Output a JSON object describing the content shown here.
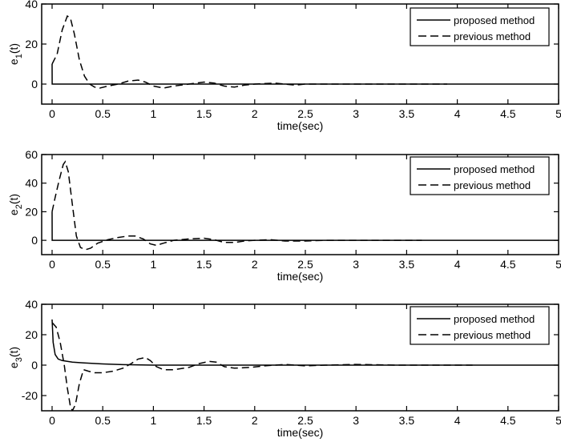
{
  "figure": {
    "legend": {
      "proposed": "proposed method",
      "previous": "previous method"
    },
    "xlabel": "time(sec)",
    "xticks": [
      "0",
      "0.5",
      "1",
      "1.5",
      "2",
      "2.5",
      "3",
      "3.5",
      "4",
      "4.5",
      "5"
    ]
  },
  "chart_data": [
    {
      "type": "line",
      "title": "",
      "xlabel": "time(sec)",
      "ylabel": "e1(t)",
      "ylabel_base": "e",
      "ylabel_sub": "1",
      "ylabel_suffix": "(t)",
      "xlim": [
        0,
        5
      ],
      "ylim": [
        -10,
        40
      ],
      "yticks": [
        "0",
        "20",
        "40"
      ],
      "ytick_values": [
        0,
        20,
        40
      ],
      "grid": false,
      "legend_position": "upper right",
      "series": [
        {
          "name": "proposed method",
          "style": "solid",
          "x": [
            0,
            0,
            0.001,
            5
          ],
          "y": [
            10,
            10,
            0,
            0
          ]
        },
        {
          "name": "previous method",
          "style": "dashed",
          "x": [
            0,
            0.05,
            0.1,
            0.15,
            0.18,
            0.22,
            0.27,
            0.32,
            0.37,
            0.42,
            0.47,
            0.55,
            0.65,
            0.75,
            0.85,
            0.92,
            1.0,
            1.1,
            1.2,
            1.35,
            1.5,
            1.6,
            1.7,
            1.8,
            1.9,
            2.0,
            2.2,
            2.4,
            2.5,
            3.0,
            3.2,
            3.8,
            3.9
          ],
          "y": [
            10,
            15,
            27,
            34,
            33,
            25,
            12,
            4,
            0,
            -1.5,
            -2,
            -1,
            0,
            1.5,
            2,
            1,
            -1,
            -2,
            -1,
            0,
            1,
            0.5,
            -1,
            -1.5,
            -0.5,
            0,
            0.5,
            -0.5,
            0,
            0,
            0,
            0,
            0
          ]
        }
      ]
    },
    {
      "type": "line",
      "title": "",
      "xlabel": "time(sec)",
      "ylabel": "e2(t)",
      "ylabel_base": "e",
      "ylabel_sub": "2",
      "ylabel_suffix": "(t)",
      "xlim": [
        0,
        5
      ],
      "ylim": [
        -10,
        60
      ],
      "yticks": [
        "0",
        "20",
        "40",
        "60"
      ],
      "ytick_values": [
        0,
        20,
        40,
        60
      ],
      "grid": false,
      "legend_position": "upper right",
      "series": [
        {
          "name": "proposed method",
          "style": "solid",
          "x": [
            0,
            0,
            0.001,
            5
          ],
          "y": [
            20,
            20,
            0,
            0
          ]
        },
        {
          "name": "previous method",
          "style": "dashed",
          "x": [
            0,
            0.03,
            0.07,
            0.11,
            0.13,
            0.16,
            0.2,
            0.24,
            0.28,
            0.33,
            0.38,
            0.45,
            0.55,
            0.65,
            0.75,
            0.82,
            0.9,
            0.97,
            1.03,
            1.1,
            1.2,
            1.35,
            1.5,
            1.6,
            1.7,
            1.8,
            1.9,
            2.0,
            2.15,
            2.3,
            2.5,
            2.7,
            3.0,
            3.5,
            3.65
          ],
          "y": [
            20,
            30,
            42,
            53,
            55,
            48,
            25,
            3,
            -5,
            -6.5,
            -5.5,
            -2,
            0.5,
            2,
            3,
            3,
            1,
            -2.5,
            -3.5,
            -2,
            0,
            1,
            1.5,
            0.5,
            -1.5,
            -1.5,
            -0.5,
            0,
            0.5,
            -0.5,
            -0.5,
            0,
            0,
            0,
            0
          ]
        }
      ]
    },
    {
      "type": "line",
      "title": "",
      "xlabel": "time(sec)",
      "ylabel": "e3(t)",
      "ylabel_base": "e",
      "ylabel_sub": "3",
      "ylabel_suffix": "(t)",
      "xlim": [
        0,
        5
      ],
      "ylim": [
        -30,
        40
      ],
      "yticks": [
        "-20",
        "0",
        "20",
        "40"
      ],
      "ytick_values": [
        -20,
        0,
        20,
        40
      ],
      "grid": false,
      "legend_position": "upper right",
      "series": [
        {
          "name": "proposed method",
          "style": "solid",
          "x": [
            0,
            0.01,
            0.03,
            0.06,
            0.1,
            0.2,
            0.3,
            0.5,
            0.7,
            1.0,
            5
          ],
          "y": [
            30,
            15,
            7,
            4,
            3,
            2,
            1.5,
            0.8,
            0.3,
            0,
            0
          ]
        },
        {
          "name": "previous method",
          "style": "dashed",
          "x": [
            0,
            0.04,
            0.08,
            0.12,
            0.15,
            0.18,
            0.2,
            0.23,
            0.27,
            0.31,
            0.36,
            0.42,
            0.5,
            0.6,
            0.7,
            0.78,
            0.85,
            0.92,
            0.97,
            1.03,
            1.1,
            1.2,
            1.35,
            1.45,
            1.55,
            1.62,
            1.7,
            1.8,
            1.95,
            2.1,
            2.3,
            2.5,
            2.7,
            3.0,
            3.4,
            4.0,
            4.15
          ],
          "y": [
            28,
            25,
            15,
            0,
            -15,
            -27,
            -30,
            -26,
            -12,
            -3,
            -4,
            -5,
            -5,
            -4,
            -2,
            1,
            4,
            5,
            3,
            -1,
            -3,
            -3,
            -1.5,
            1,
            2.5,
            2,
            -1,
            -2,
            -1.5,
            -0.5,
            0.5,
            -0.5,
            0,
            0.5,
            0,
            0,
            0
          ]
        }
      ]
    }
  ]
}
